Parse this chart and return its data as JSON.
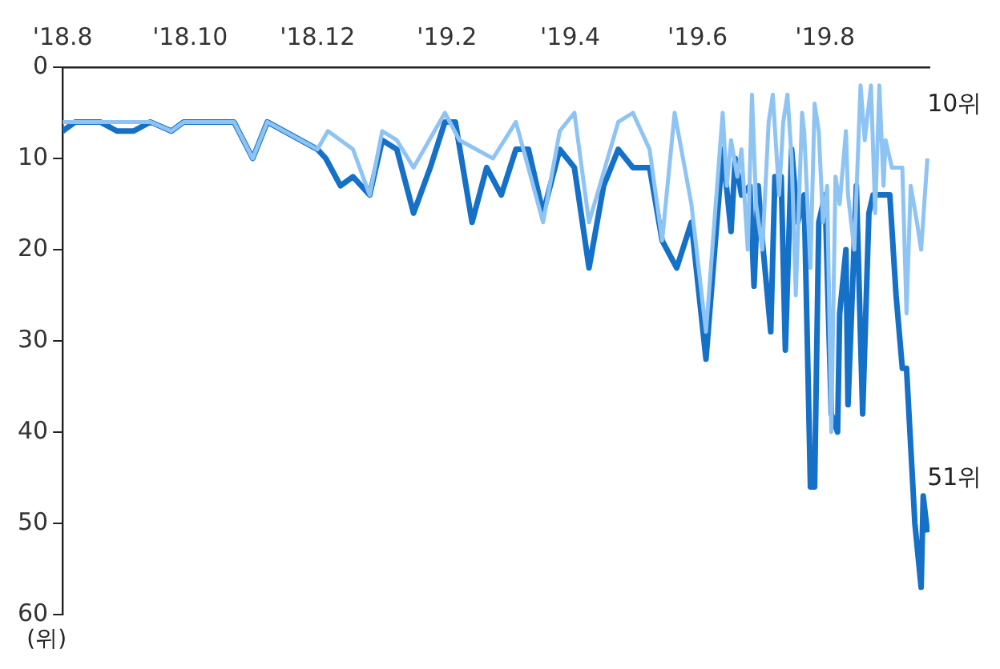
{
  "chart_data": {
    "type": "line",
    "ylabel": "(위)",
    "xlim": [
      "2018-08-01",
      "2019-09-20"
    ],
    "xticks": [
      {
        "value": "2018-08-01",
        "label": "'18.8"
      },
      {
        "value": "2018-10-01",
        "label": "'18.10"
      },
      {
        "value": "2018-12-01",
        "label": "'18.12"
      },
      {
        "value": "2019-02-01",
        "label": "'19.2"
      },
      {
        "value": "2019-04-01",
        "label": "'19.4"
      },
      {
        "value": "2019-06-01",
        "label": "'19.6"
      },
      {
        "value": "2019-08-01",
        "label": "'19.8"
      }
    ],
    "ylim": [
      60,
      0
    ],
    "yticks": [
      0,
      10,
      20,
      30,
      40,
      50,
      60
    ],
    "grid": false,
    "legend": false,
    "marker": "none",
    "line_style": "solid",
    "series": [
      {
        "color": "#1570c8",
        "x": [
          "2018-08-01",
          "2018-08-07",
          "2018-08-19",
          "2018-08-27",
          "2018-09-04",
          "2018-09-12",
          "2018-09-22",
          "2018-09-28",
          "2018-10-22",
          "2018-10-31",
          "2018-11-07",
          "2018-12-01",
          "2018-12-05",
          "2018-12-12",
          "2018-12-18",
          "2018-12-26",
          "2019-01-01",
          "2019-01-08",
          "2019-01-16",
          "2019-01-24",
          "2019-01-31",
          "2019-02-05",
          "2019-02-13",
          "2019-02-20",
          "2019-02-27",
          "2019-03-06",
          "2019-03-12",
          "2019-03-19",
          "2019-03-27",
          "2019-04-03",
          "2019-04-10",
          "2019-04-17",
          "2019-04-24",
          "2019-05-01",
          "2019-05-09",
          "2019-05-15",
          "2019-05-22",
          "2019-05-29",
          "2019-06-05",
          "2019-06-13",
          "2019-06-17",
          "2019-06-19",
          "2019-06-22",
          "2019-06-26",
          "2019-06-28",
          "2019-06-30",
          "2019-07-02",
          "2019-07-06",
          "2019-07-08",
          "2019-07-11",
          "2019-07-13",
          "2019-07-16",
          "2019-07-19",
          "2019-07-22",
          "2019-07-25",
          "2019-07-27",
          "2019-07-29",
          "2019-08-01",
          "2019-08-04",
          "2019-08-07",
          "2019-08-08",
          "2019-08-11",
          "2019-08-12",
          "2019-08-16",
          "2019-08-19",
          "2019-08-22",
          "2019-08-24",
          "2019-08-29",
          "2019-09-01",
          "2019-09-04",
          "2019-09-07",
          "2019-09-09",
          "2019-09-13",
          "2019-09-16",
          "2019-09-17",
          "2019-09-19"
        ],
        "values": [
          7,
          6,
          6,
          7,
          7,
          6,
          7,
          6,
          6,
          10,
          6,
          9,
          10,
          13,
          12,
          14,
          8,
          9,
          16,
          11,
          6,
          6,
          17,
          11,
          14,
          9,
          9,
          16,
          9,
          11,
          22,
          13,
          9,
          11,
          11,
          19,
          22,
          17,
          32,
          9,
          18,
          10,
          14,
          13,
          24,
          13,
          19,
          29,
          12,
          12,
          31,
          9,
          17,
          14,
          46,
          46,
          17,
          14,
          38,
          40,
          27,
          20,
          37,
          13,
          38,
          16,
          14,
          14,
          14,
          25,
          33,
          33,
          50,
          57,
          47,
          51
        ]
      },
      {
        "color": "#8ec4f4",
        "x": [
          "2018-08-01",
          "2018-08-07",
          "2018-09-12",
          "2018-09-22",
          "2018-09-28",
          "2018-10-22",
          "2018-10-31",
          "2018-11-07",
          "2018-12-01",
          "2018-12-06",
          "2018-12-18",
          "2018-12-26",
          "2019-01-01",
          "2019-01-08",
          "2019-01-16",
          "2019-01-31",
          "2019-02-07",
          "2019-02-23",
          "2019-03-06",
          "2019-03-19",
          "2019-03-27",
          "2019-04-03",
          "2019-04-10",
          "2019-04-24",
          "2019-05-01",
          "2019-05-09",
          "2019-05-15",
          "2019-05-21",
          "2019-05-29",
          "2019-06-05",
          "2019-06-13",
          "2019-06-15",
          "2019-06-17",
          "2019-06-20",
          "2019-06-22",
          "2019-06-25",
          "2019-06-27",
          "2019-06-29",
          "2019-07-02",
          "2019-07-05",
          "2019-07-07",
          "2019-07-10",
          "2019-07-12",
          "2019-07-14",
          "2019-07-16",
          "2019-07-18",
          "2019-07-21",
          "2019-07-22",
          "2019-07-25",
          "2019-07-27",
          "2019-07-29",
          "2019-07-31",
          "2019-08-02",
          "2019-08-04",
          "2019-08-06",
          "2019-08-08",
          "2019-08-11",
          "2019-08-12",
          "2019-08-15",
          "2019-08-18",
          "2019-08-20",
          "2019-08-23",
          "2019-08-25",
          "2019-08-27",
          "2019-08-29",
          "2019-08-30",
          "2019-09-02",
          "2019-09-04",
          "2019-09-07",
          "2019-09-09",
          "2019-09-11",
          "2019-09-14",
          "2019-09-16",
          "2019-09-19"
        ],
        "values": [
          6,
          6,
          6,
          7,
          6,
          6,
          10,
          6,
          9,
          7,
          9,
          14,
          7,
          8,
          11,
          5,
          8,
          10,
          6,
          17,
          7,
          5,
          17,
          6,
          5,
          9,
          19,
          5,
          15,
          29,
          5,
          13,
          8,
          12,
          9,
          20,
          3,
          15,
          20,
          6,
          3,
          14,
          6,
          3,
          10,
          25,
          5,
          7,
          22,
          4,
          7,
          17,
          13,
          40,
          12,
          15,
          7,
          14,
          20,
          2,
          8,
          2,
          16,
          2,
          13,
          8,
          11,
          11,
          11,
          27,
          13,
          17,
          20,
          10
        ]
      }
    ],
    "annotations": [
      {
        "text": "10위",
        "x": "2019-09-19",
        "y": 10
      },
      {
        "text": "51위",
        "x": "2019-09-19",
        "y": 51
      }
    ]
  }
}
